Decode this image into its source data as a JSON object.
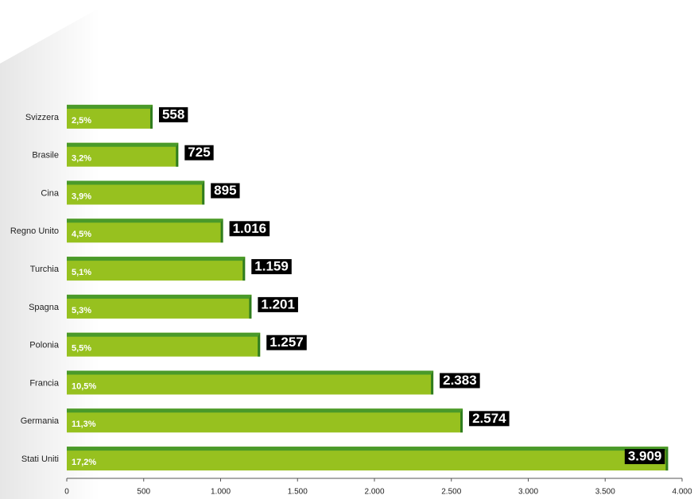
{
  "chart_data": {
    "type": "hbar",
    "categories": [
      "Svizzera",
      "Brasile",
      "Cina",
      "Regno Unito",
      "Turchia",
      "Spagna",
      "Polonia",
      "Francia",
      "Germania",
      "Stati Uniti"
    ],
    "values": [
      558,
      725,
      895,
      1016,
      1159,
      1201,
      1257,
      2383,
      2574,
      3909
    ],
    "value_labels": [
      "558",
      "725",
      "895",
      "1.016",
      "1.159",
      "1.201",
      "1.257",
      "2.383",
      "2.574",
      "3.909"
    ],
    "share_labels": [
      "2,5%",
      "3,2%",
      "3,9%",
      "4,5%",
      "5,1%",
      "5,3%",
      "5,5%",
      "10,5%",
      "11,3%",
      "17,2%"
    ],
    "color": "#97c11f",
    "xlim": [
      0,
      4000
    ],
    "xticks": [
      0,
      500,
      {
        "value": 1000,
        "label": "1.000"
      },
      {
        "value": 1500,
        "label": "1.500"
      },
      {
        "value": 2000,
        "label": "2.000"
      },
      {
        "value": 2500,
        "label": "2.500"
      },
      {
        "value": 3000,
        "label": "3.000"
      },
      {
        "value": 3500,
        "label": "3.500"
      },
      {
        "value": 4000,
        "label": "4.000"
      }
    ]
  }
}
